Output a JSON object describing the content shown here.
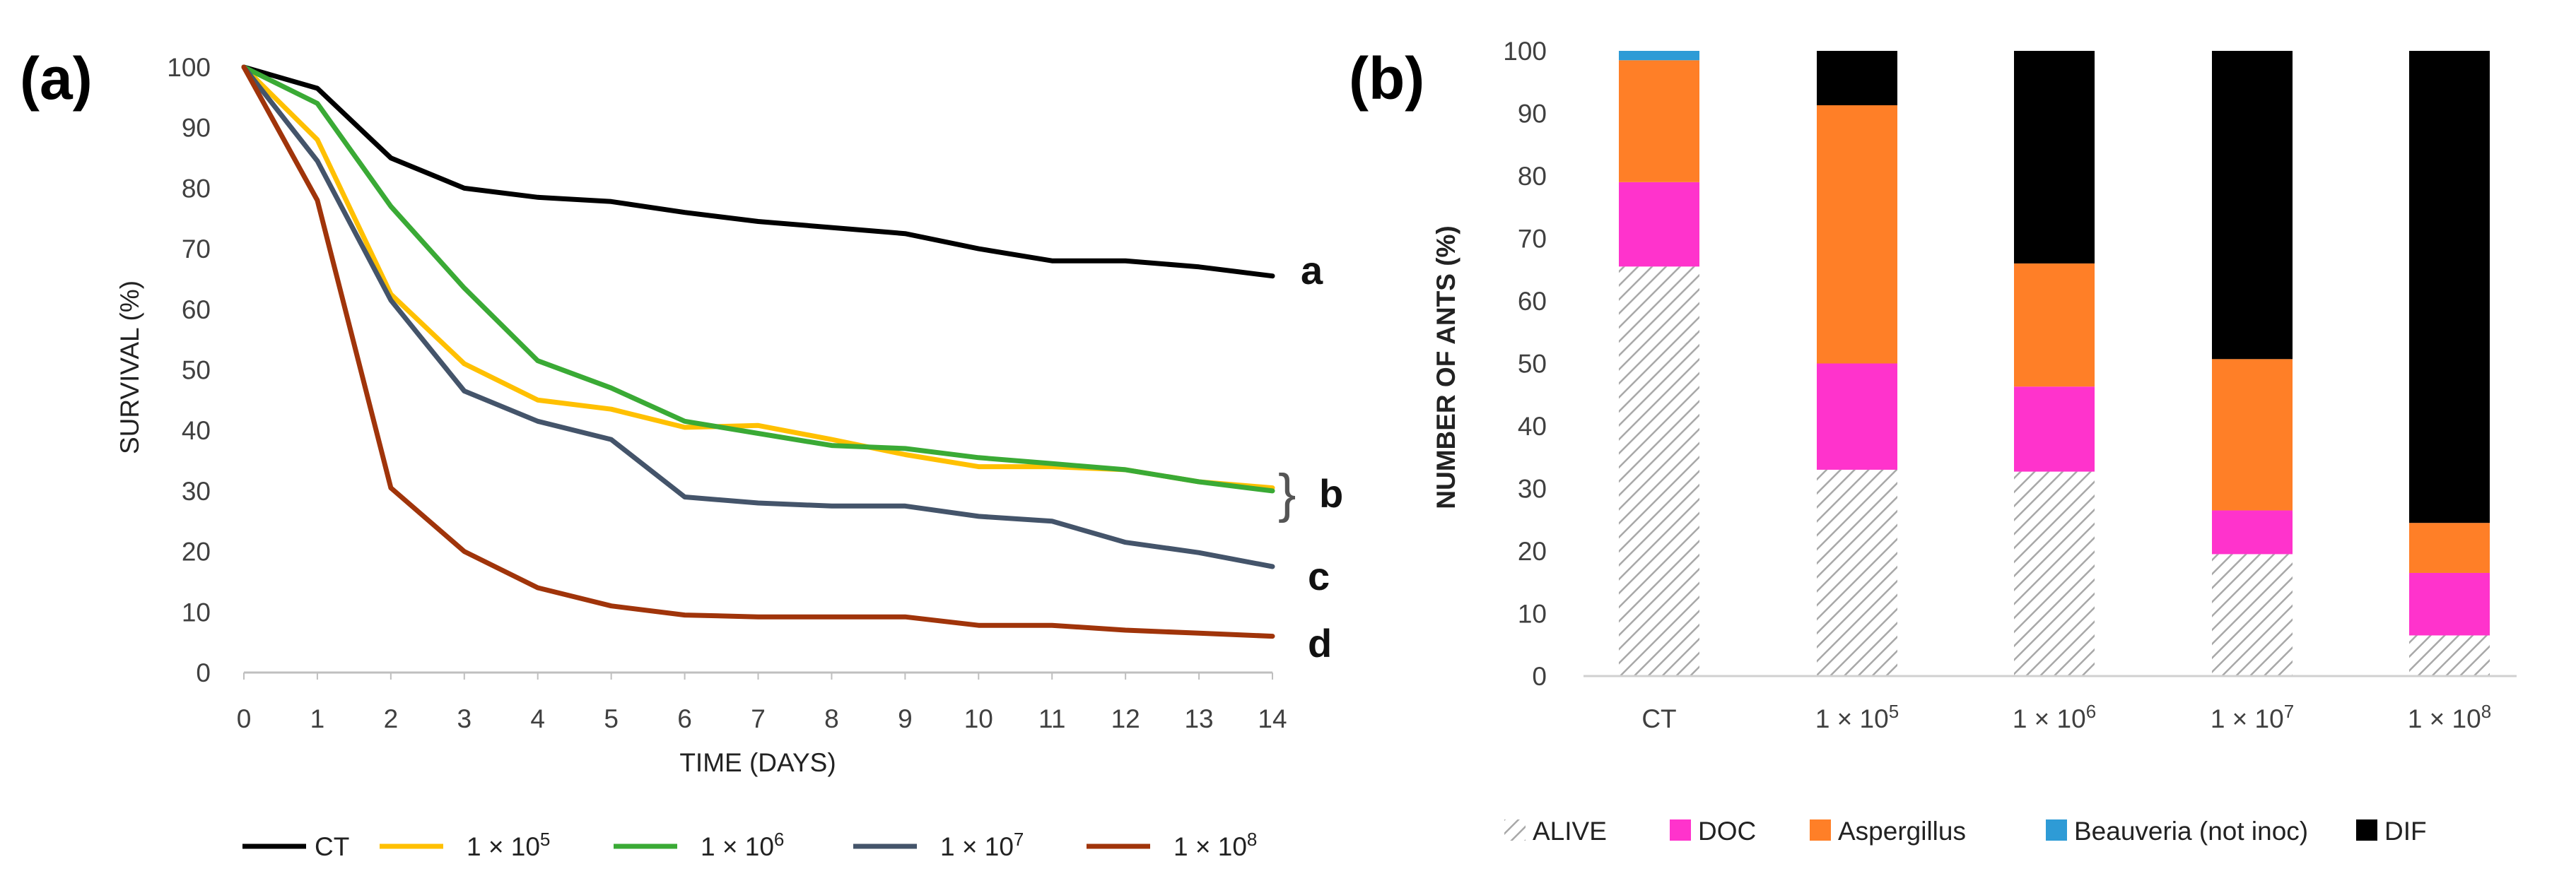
{
  "chart_data": [
    {
      "type": "line",
      "panel_label": "(a)",
      "xlabel": "TIME (DAYS)",
      "ylabel": "SURVIVAL (%)",
      "xlim": [
        0,
        14
      ],
      "ylim": [
        0,
        100
      ],
      "x_ticks": [
        "0",
        "1",
        "2",
        "3",
        "4",
        "5",
        "6",
        "7",
        "8",
        "9",
        "10",
        "11",
        "12",
        "13",
        "14"
      ],
      "y_ticks": [
        "0",
        "10",
        "20",
        "30",
        "40",
        "50",
        "60",
        "70",
        "80",
        "90",
        "100"
      ],
      "x": [
        0,
        1,
        2,
        3,
        4,
        5,
        6,
        7,
        8,
        9,
        10,
        11,
        12,
        13,
        14
      ],
      "series": [
        {
          "name": "CT",
          "color": "#000000",
          "values": [
            100,
            96.5,
            85,
            80,
            78.5,
            77.8,
            76,
            74.5,
            73.5,
            72.5,
            70,
            68,
            68,
            67,
            65.5
          ]
        },
        {
          "name": "1 × 10",
          "sup": "5",
          "color": "#FFC000",
          "values": [
            100,
            88,
            62.5,
            51,
            45,
            43.5,
            40.5,
            40.8,
            38.5,
            36,
            34,
            34,
            33.5,
            31.5,
            30.5
          ]
        },
        {
          "name": "1 × 10",
          "sup": "6",
          "color": "#3AAA35",
          "values": [
            100,
            94,
            77,
            63.5,
            51.5,
            47,
            41.5,
            39.5,
            37.5,
            37,
            35.5,
            34.5,
            33.5,
            31.5,
            30
          ]
        },
        {
          "name": "1 × 10",
          "sup": "7",
          "color": "#44546A",
          "values": [
            100,
            84.5,
            61.5,
            46.5,
            41.5,
            38.5,
            29,
            28,
            27.5,
            27.5,
            25.8,
            25,
            21.5,
            19.8,
            17.5
          ]
        },
        {
          "name": "1 × 10",
          "sup": "8",
          "color": "#A0340A",
          "values": [
            100,
            78,
            30.5,
            20,
            14,
            11,
            9.5,
            9.2,
            9.2,
            9.2,
            7.8,
            7.8,
            7,
            6.5,
            6
          ]
        }
      ],
      "annotations": {
        "a": "a",
        "b": "b",
        "c": "c",
        "d": "d",
        "brace": "}"
      }
    },
    {
      "type": "bar",
      "stacked": true,
      "panel_label": "(b)",
      "ylabel": "NUMBER OF ANTS (%)",
      "ylim": [
        0,
        100
      ],
      "y_ticks": [
        "0",
        "10",
        "20",
        "30",
        "40",
        "50",
        "60",
        "70",
        "80",
        "90",
        "100"
      ],
      "categories": [
        {
          "base": "CT",
          "sup": ""
        },
        {
          "base": "1 × 10",
          "sup": "5"
        },
        {
          "base": "1 × 10",
          "sup": "6"
        },
        {
          "base": "1 × 10",
          "sup": "7"
        },
        {
          "base": "1 × 10",
          "sup": "8"
        }
      ],
      "series": [
        {
          "name": "ALIVE",
          "color": "#9E9E9E",
          "pattern": "hatch",
          "values": [
            65.5,
            33,
            32.7,
            19.5,
            6.5
          ]
        },
        {
          "name": "DOC",
          "color": "#FF33CC",
          "values": [
            13.5,
            17,
            13.6,
            7,
            10
          ]
        },
        {
          "name": "Aspergillus",
          "color": "#FF7F27",
          "values": [
            19.5,
            41.3,
            19.7,
            24.2,
            8
          ]
        },
        {
          "name": "Beauveria (not inoc)",
          "color": "#2E9BD6",
          "values": [
            1.5,
            0,
            0,
            0,
            0
          ]
        },
        {
          "name": "DIF",
          "color": "#000000",
          "values": [
            0,
            8.7,
            34,
            49.3,
            75.5
          ]
        }
      ]
    }
  ]
}
